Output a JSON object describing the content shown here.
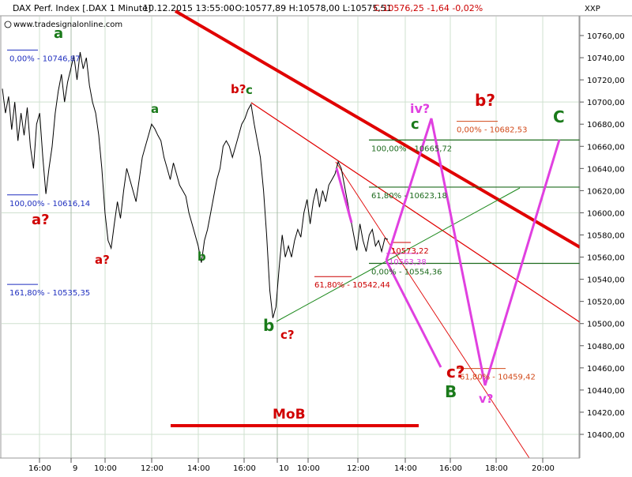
{
  "header": {
    "instrument": "DAX Perf. Index [.DAX  1 Minute]",
    "datetime": "10.12.2015 13:55:00",
    "ohlc": "- O:10577,89 H:10578,00 L:10575,51",
    "change": "C:10576,25 -1,64 -0,02%",
    "axis_name": "XXP",
    "website": "www.tradesignalonline.com"
  },
  "colors": {
    "price": "#000000",
    "grid": "#cfe0cf",
    "channel": "#e00000",
    "fib_blue": "#1f2fbf",
    "fib_green": "#1e6b1e",
    "fib_red": "#cc0000",
    "fib_orange": "#d24a1a",
    "projection": "#e040e0",
    "wave_green": "#1a7a1a",
    "wave_red": "#d00000",
    "wave_magenta": "#e040e0"
  },
  "chart_data": {
    "type": "line",
    "title": "DAX Perf. Index [.DAX  1 Minute]",
    "y_axis": {
      "range": [
        10380,
        10775
      ],
      "ticks": [
        "10400,00",
        "10420,00",
        "10440,00",
        "10460,00",
        "10480,00",
        "10500,00",
        "10520,00",
        "10540,00",
        "10560,00",
        "10580,00",
        "10600,00",
        "10620,00",
        "10640,00",
        "10660,00",
        "10680,00",
        "10700,00",
        "10720,00",
        "10740,00",
        "10760,00"
      ]
    },
    "x_axis": {
      "ticks": [
        "16:00",
        "9",
        "10:00",
        "12:00",
        "14:00",
        "16:00",
        "10",
        "10:00",
        "12:00",
        "14:00",
        "16:00",
        "18:00",
        "20:00"
      ]
    },
    "grid": true,
    "price_series": {
      "name": "DAX",
      "y": [
        10712,
        10690,
        10705,
        10675,
        10700,
        10665,
        10690,
        10670,
        10695,
        10660,
        10640,
        10680,
        10690,
        10650,
        10617,
        10640,
        10660,
        10690,
        10710,
        10725,
        10700,
        10718,
        10730,
        10742,
        10720,
        10745,
        10730,
        10740,
        10715,
        10700,
        10690,
        10670,
        10640,
        10600,
        10575,
        10568,
        10590,
        10610,
        10595,
        10620,
        10640,
        10630,
        10620,
        10610,
        10630,
        10650,
        10660,
        10670,
        10680,
        10676,
        10670,
        10665,
        10650,
        10640,
        10630,
        10645,
        10635,
        10625,
        10620,
        10615,
        10600,
        10590,
        10580,
        10570,
        10555,
        10575,
        10585,
        10600,
        10615,
        10630,
        10640,
        10660,
        10665,
        10660,
        10650,
        10660,
        10670,
        10680,
        10685,
        10693,
        10698,
        10680,
        10665,
        10650,
        10620,
        10580,
        10530,
        10505,
        10515,
        10550,
        10580,
        10560,
        10570,
        10560,
        10575,
        10585,
        10578,
        10600,
        10612,
        10590,
        10610,
        10622,
        10605,
        10620,
        10610,
        10625,
        10630,
        10635,
        10646,
        10640,
        10625,
        10610,
        10595,
        10580,
        10566,
        10590,
        10575,
        10565,
        10580,
        10585,
        10570,
        10575,
        10565,
        10577,
        10576
      ]
    },
    "fib_levels": [
      {
        "label": "0,00% - 10746,87",
        "value": 10746.87,
        "color": "blue"
      },
      {
        "label": "100,00% - 10616,14",
        "value": 10616.14,
        "color": "blue"
      },
      {
        "label": "161,80% - 10535,35",
        "value": 10535.35,
        "color": "blue"
      },
      {
        "label": "100,00% - 10665,72",
        "value": 10665.72,
        "color": "green"
      },
      {
        "label": "61,80% - 10623,18",
        "value": 10623.18,
        "color": "green"
      },
      {
        "label": "0,00% - 10554,36",
        "value": 10554.36,
        "color": "green"
      },
      {
        "label": "61,80% - 10542,44",
        "value": 10542.44,
        "color": "red"
      },
      {
        "label": "10573,22",
        "value": 10573.22,
        "color": "red"
      },
      {
        "label": "10563,38",
        "value": 10563.38,
        "color": "projection"
      },
      {
        "label": "0,00% - 10682,53",
        "value": 10682.53,
        "color": "orange"
      },
      {
        "label": "61,80% - 10459,42",
        "value": 10459.42,
        "color": "orange"
      }
    ],
    "annotations": [
      {
        "text": "a",
        "color": "green",
        "size": "large"
      },
      {
        "text": "a?",
        "color": "red",
        "size": "large"
      },
      {
        "text": "a?",
        "color": "red",
        "size": "medium"
      },
      {
        "text": "a",
        "color": "green",
        "size": "medium"
      },
      {
        "text": "b",
        "color": "green",
        "size": "medium"
      },
      {
        "text": "b?",
        "color": "red",
        "size": "medium"
      },
      {
        "text": "c",
        "color": "green",
        "size": "medium"
      },
      {
        "text": "b",
        "color": "green",
        "size": "large"
      },
      {
        "text": "c?",
        "color": "red",
        "size": "medium"
      },
      {
        "text": "iv?",
        "color": "magenta",
        "size": "medium"
      },
      {
        "text": "c",
        "color": "green",
        "size": "large"
      },
      {
        "text": "b?",
        "color": "red",
        "size": "large"
      },
      {
        "text": "C",
        "color": "green",
        "size": "large"
      },
      {
        "text": "c?",
        "color": "red",
        "size": "large"
      },
      {
        "text": "B",
        "color": "green",
        "size": "large"
      },
      {
        "text": "v?",
        "color": "magenta",
        "size": "medium"
      },
      {
        "text": "MoB",
        "color": "red",
        "size": "large"
      }
    ]
  }
}
